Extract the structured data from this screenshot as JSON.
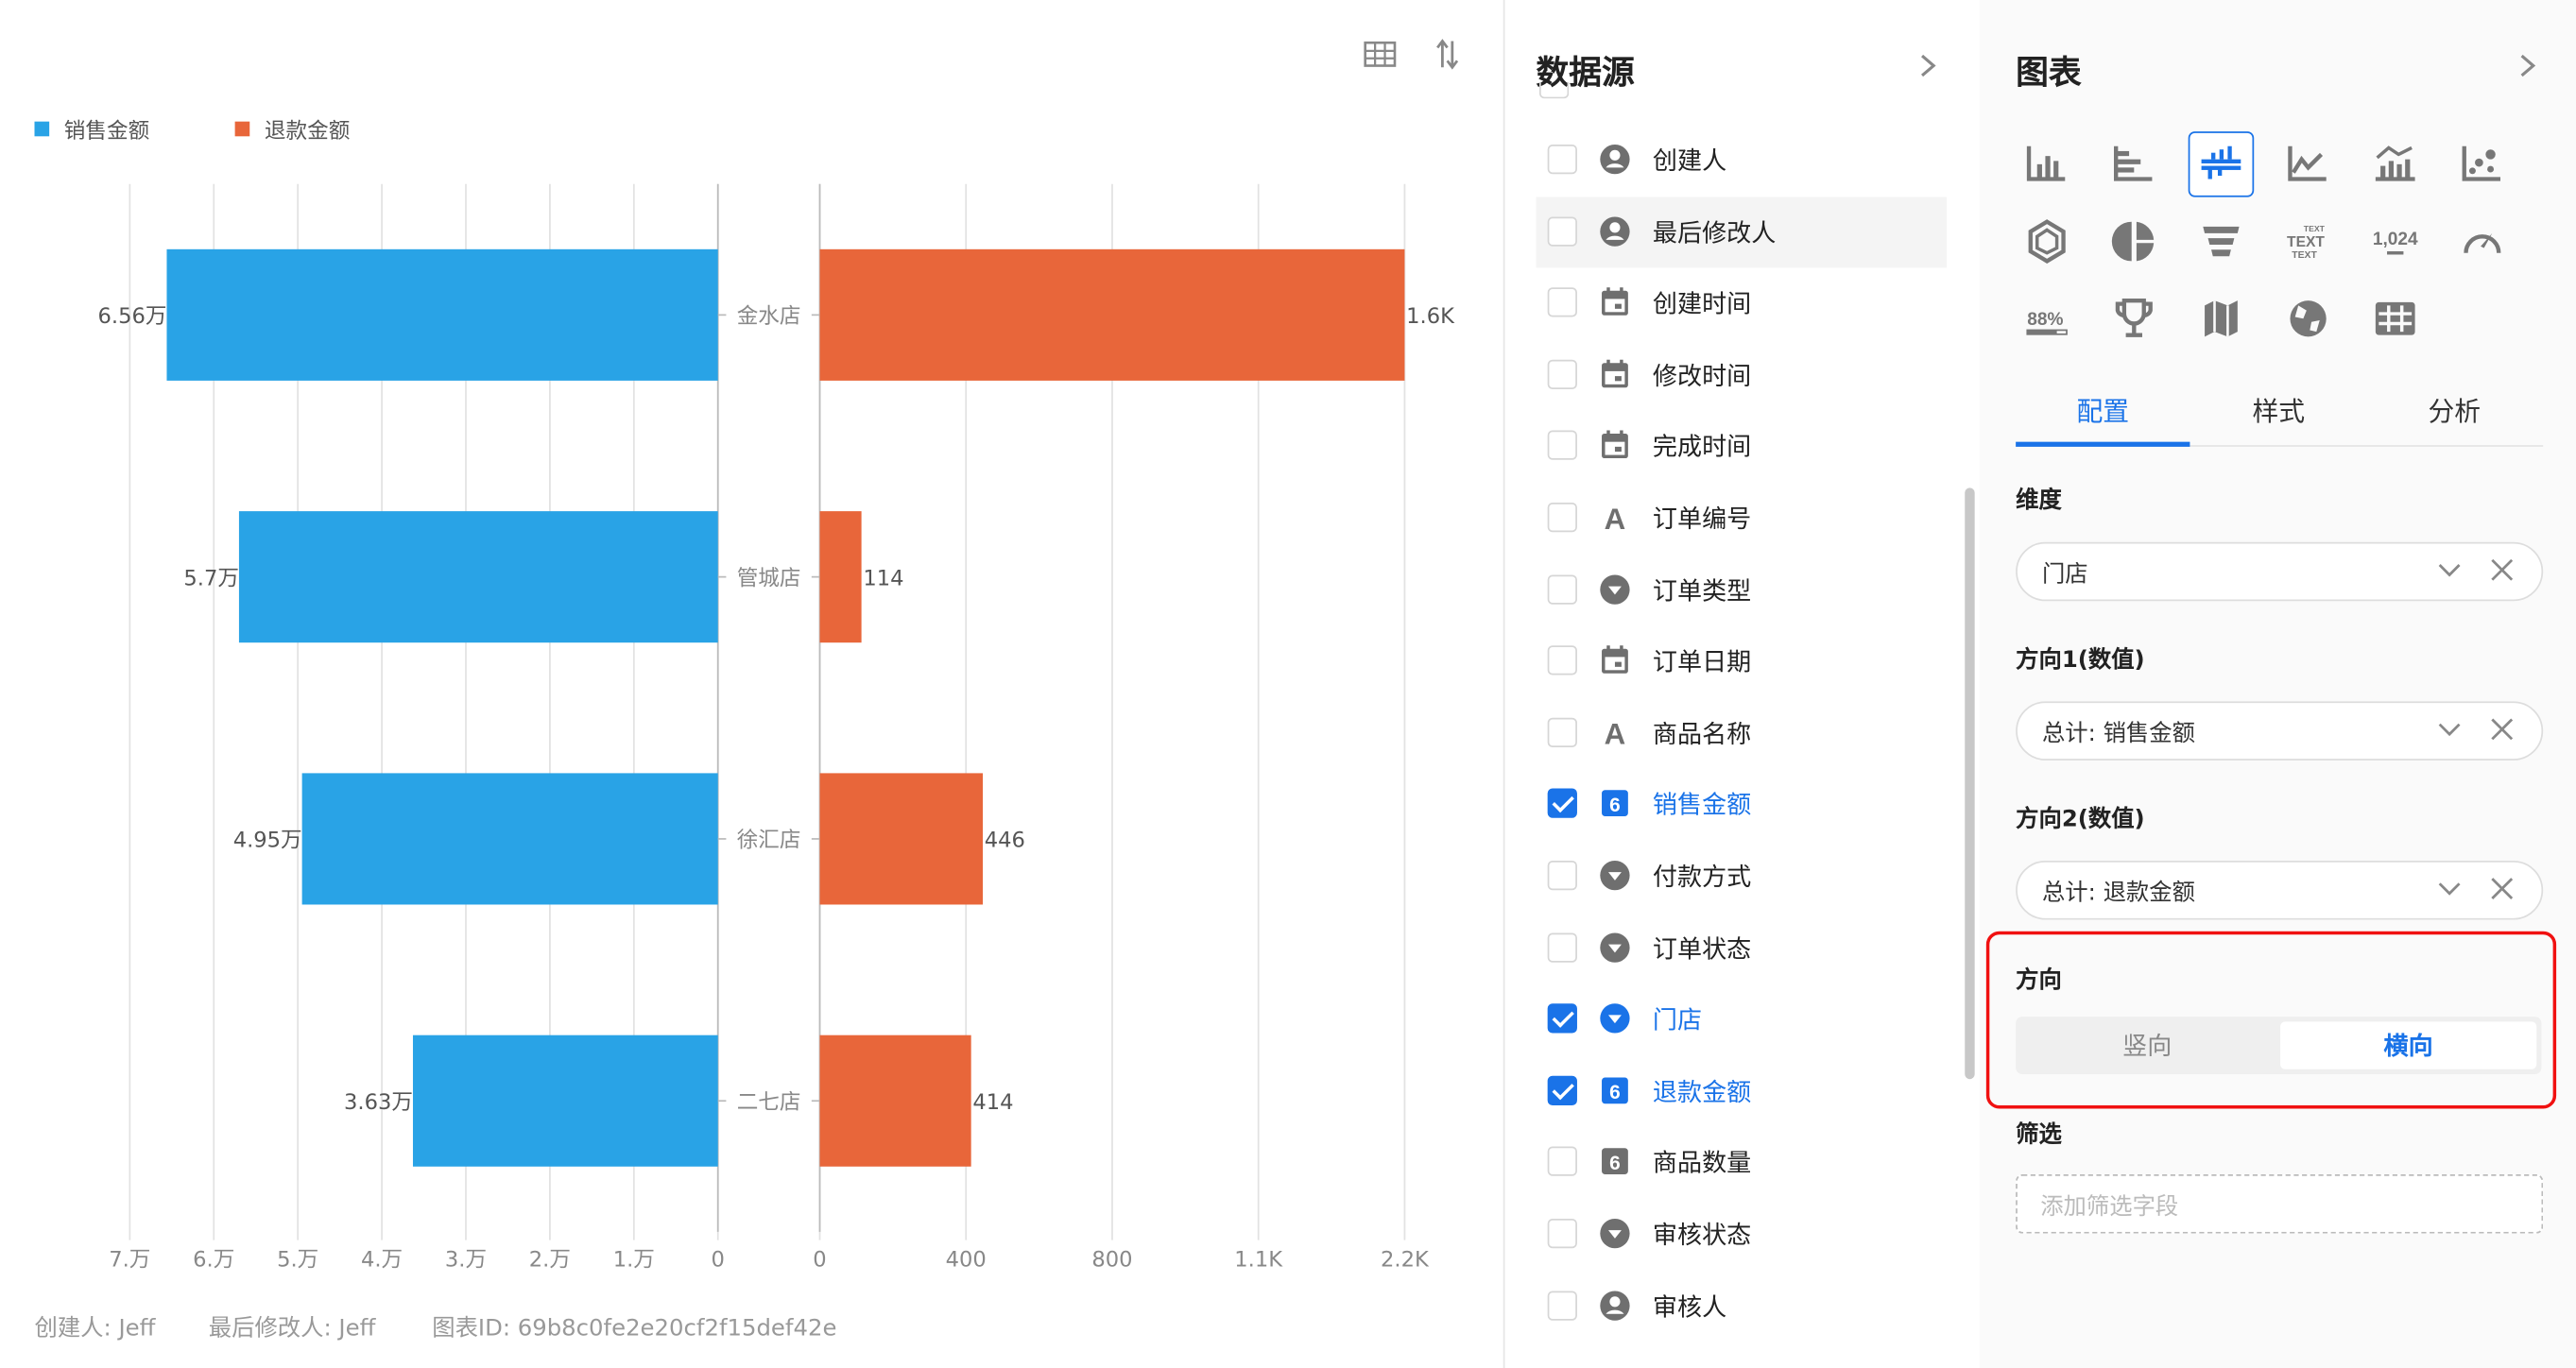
{
  "chart_toolbar": {
    "table_icon": "table-icon",
    "swap_icon": "sort-arrows-icon"
  },
  "chart_data": {
    "type": "bar",
    "orientation": "horizontal-mirrored",
    "categories": [
      "金水店",
      "管城店",
      "徐汇店",
      "二七店"
    ],
    "series": [
      {
        "name": "销售金额",
        "values": [
          65600,
          57000,
          49500,
          36300
        ],
        "labels": [
          "6.56万",
          "5.7万",
          "4.95万",
          "3.63万"
        ],
        "color": "#29a3e6"
      },
      {
        "name": "退款金额",
        "values": [
          1600,
          114,
          446,
          414
        ],
        "labels": [
          "1.6K",
          "114",
          "446",
          "414"
        ],
        "color": "#e8663a"
      }
    ],
    "left_axis": {
      "xlim": [
        0,
        70000
      ],
      "ticks": [
        "7.万",
        "6.万",
        "5.万",
        "4.万",
        "3.万",
        "2.万",
        "1.万",
        "0"
      ]
    },
    "right_axis": {
      "xlim": [
        0,
        1600
      ],
      "ticks": [
        "0",
        "400",
        "800",
        "1.1K",
        "2.2K"
      ]
    },
    "legend": "top-left",
    "grid": true
  },
  "footer": {
    "creator": "创建人: Jeff",
    "modifier": "最后修改人: Jeff",
    "chart_id": "图表ID: 69b8c0fe2e20cf2f15def42e"
  },
  "datasource": {
    "title": "数据源",
    "items": [
      {
        "label": "创建人",
        "icon": "person",
        "checked": false
      },
      {
        "label": "最后修改人",
        "icon": "person",
        "checked": false
      },
      {
        "label": "创建时间",
        "icon": "calendar",
        "checked": false
      },
      {
        "label": "修改时间",
        "icon": "calendar",
        "checked": false
      },
      {
        "label": "完成时间",
        "icon": "calendar",
        "checked": false
      },
      {
        "label": "订单编号",
        "icon": "text",
        "checked": false
      },
      {
        "label": "订单类型",
        "icon": "select",
        "checked": false
      },
      {
        "label": "订单日期",
        "icon": "calendar",
        "checked": false
      },
      {
        "label": "商品名称",
        "icon": "text",
        "checked": false
      },
      {
        "label": "销售金额",
        "icon": "number",
        "checked": true
      },
      {
        "label": "付款方式",
        "icon": "select",
        "checked": false
      },
      {
        "label": "订单状态",
        "icon": "select",
        "checked": false
      },
      {
        "label": "门店",
        "icon": "select",
        "checked": true
      },
      {
        "label": "退款金额",
        "icon": "number",
        "checked": true
      },
      {
        "label": "商品数量",
        "icon": "number",
        "checked": false
      },
      {
        "label": "审核状态",
        "icon": "select",
        "checked": false
      },
      {
        "label": "审核人",
        "icon": "person",
        "checked": false
      }
    ]
  },
  "config": {
    "title": "图表",
    "chart_types": [
      "bar",
      "horizontal-bar",
      "bidirectional-bar",
      "line",
      "bar-line",
      "scatter",
      "radar",
      "pie",
      "funnel",
      "text",
      "number",
      "gauge",
      "progress",
      "ranking",
      "map",
      "globe",
      "table"
    ],
    "selected_type": "bidirectional-bar",
    "icon_text": {
      "text": "TEXT",
      "number": "1,024",
      "progress": "88%"
    },
    "tabs": [
      "配置",
      "样式",
      "分析"
    ],
    "active_tab": "配置",
    "dimension": {
      "label": "维度",
      "value": "门店"
    },
    "measure1": {
      "label": "方向1(数值)",
      "value": "总计: 销售金额"
    },
    "measure2": {
      "label": "方向2(数值)",
      "value": "总计: 退款金额"
    },
    "direction": {
      "label": "方向",
      "options": [
        "竖向",
        "横向"
      ],
      "selected": "横向"
    },
    "filter": {
      "label": "筛选",
      "placeholder": "添加筛选字段"
    },
    "accent": "#1a73e8"
  }
}
